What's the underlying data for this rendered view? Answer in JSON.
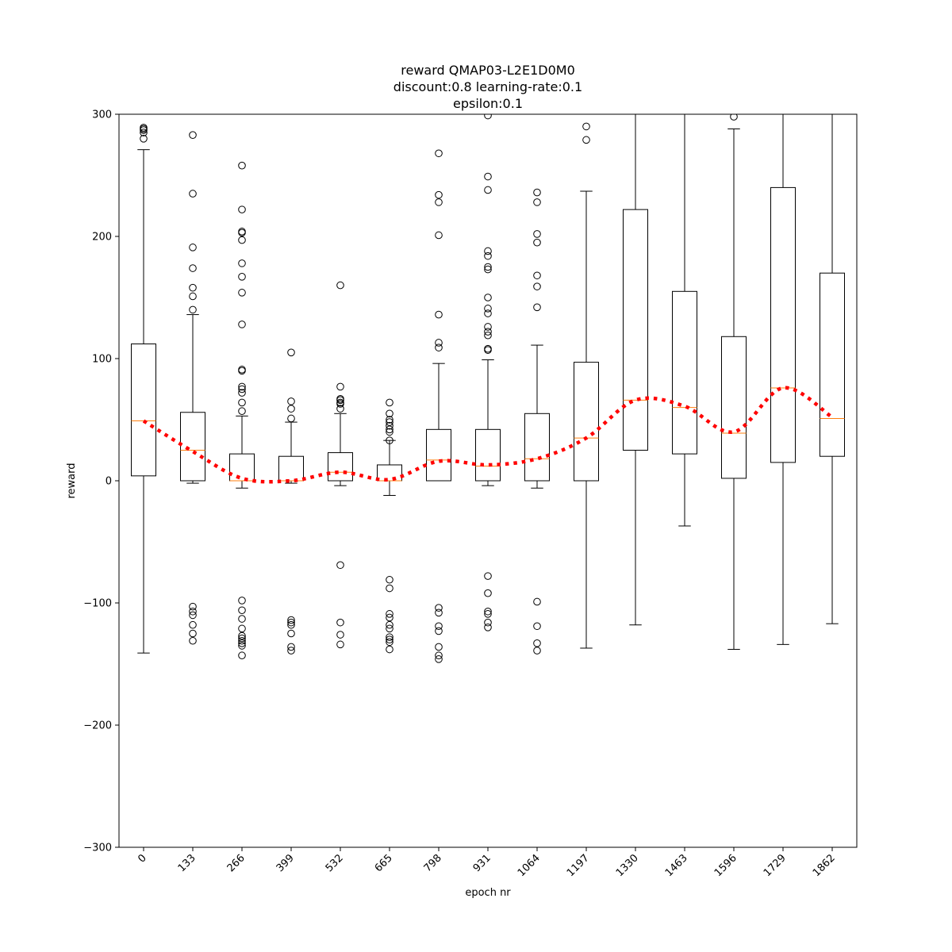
{
  "chart_data": {
    "type": "box",
    "title_lines": [
      "reward QMAP03-L2E1D0M0",
      "discount:0.8 learning-rate:0.1",
      "epsilon:0.1"
    ],
    "xlabel": "epoch nr",
    "ylabel": "reward",
    "ylim": [
      -300,
      300
    ],
    "yticks": [
      -300,
      -200,
      -100,
      0,
      100,
      200,
      300
    ],
    "categories": [
      "0",
      "133",
      "266",
      "399",
      "532",
      "665",
      "798",
      "931",
      "1064",
      "1197",
      "1330",
      "1463",
      "1596",
      "1729",
      "1862"
    ],
    "boxes": [
      {
        "q1": 4,
        "median": 49,
        "q3": 112,
        "whisker_low": -141,
        "whisker_high": 271,
        "outliers": [
          280,
          285,
          287,
          288,
          289
        ]
      },
      {
        "q1": 0,
        "median": 25,
        "q3": 56,
        "whisker_low": -2,
        "whisker_high": 136,
        "outliers": [
          283,
          235,
          191,
          174,
          158,
          151,
          140,
          -103,
          -107,
          -110,
          -118,
          -125,
          -131
        ]
      },
      {
        "q1": 0,
        "median": 0,
        "q3": 22,
        "whisker_low": -6,
        "whisker_high": 53,
        "outliers": [
          258,
          222,
          204,
          203,
          197,
          178,
          167,
          154,
          128,
          91,
          90,
          77,
          75,
          72,
          64,
          57,
          -98,
          -106,
          -113,
          -121,
          -127,
          -129,
          -131,
          -133,
          -135,
          -143
        ]
      },
      {
        "q1": 0,
        "median": 0,
        "q3": 20,
        "whisker_low": -2,
        "whisker_high": 48,
        "outliers": [
          105,
          65,
          59,
          51,
          -114,
          -116,
          -118,
          -125,
          -136,
          -139
        ]
      },
      {
        "q1": 0,
        "median": 7,
        "q3": 23,
        "whisker_low": -4,
        "whisker_high": 55,
        "outliers": [
          160,
          77,
          67,
          66,
          64,
          63,
          59,
          -69,
          -116,
          -126,
          -134
        ]
      },
      {
        "q1": 0,
        "median": 0,
        "q3": 13,
        "whisker_low": -12,
        "whisker_high": 33,
        "outliers": [
          64,
          55,
          50,
          48,
          45,
          42,
          40,
          33,
          -81,
          -88,
          -109,
          -112,
          -118,
          -121,
          -128,
          -130,
          -132,
          -138
        ]
      },
      {
        "q1": 0,
        "median": 17,
        "q3": 42,
        "whisker_low": 0,
        "whisker_high": 96,
        "outliers": [
          268,
          234,
          228,
          201,
          136,
          113,
          109,
          -104,
          -108,
          -119,
          -123,
          -136,
          -143,
          -146
        ]
      },
      {
        "q1": 0,
        "median": 12,
        "q3": 42,
        "whisker_low": -4,
        "whisker_high": 99,
        "outliers": [
          299,
          249,
          238,
          188,
          184,
          175,
          173,
          150,
          141,
          137,
          126,
          122,
          119,
          108,
          107,
          -78,
          -92,
          -107,
          -109,
          -116,
          -120
        ]
      },
      {
        "q1": 0,
        "median": 18,
        "q3": 55,
        "whisker_low": -6,
        "whisker_high": 111,
        "outliers": [
          236,
          228,
          202,
          195,
          168,
          159,
          142,
          -99,
          -119,
          -133,
          -139
        ]
      },
      {
        "q1": 0,
        "median": 35,
        "q3": 97,
        "whisker_low": -137,
        "whisker_high": 237,
        "outliers": [
          290,
          279
        ]
      },
      {
        "q1": 25,
        "median": 66,
        "q3": 222,
        "whisker_low": -118,
        "whisker_high": 300,
        "outliers": []
      },
      {
        "q1": 22,
        "median": 60,
        "q3": 155,
        "whisker_low": -37,
        "whisker_high": 300,
        "outliers": []
      },
      {
        "q1": 2,
        "median": 39,
        "q3": 118,
        "whisker_low": -138,
        "whisker_high": 288,
        "outliers": [
          298
        ]
      },
      {
        "q1": 15,
        "median": 76,
        "q3": 240,
        "whisker_low": -134,
        "whisker_high": 300,
        "outliers": []
      },
      {
        "q1": 20,
        "median": 51,
        "q3": 170,
        "whisker_low": -117,
        "whisker_high": 300,
        "outliers": []
      }
    ],
    "trend_line": {
      "style": "dotted",
      "color": "#ff0000",
      "values": [
        49,
        24,
        2,
        0,
        7,
        1,
        16,
        13,
        18,
        35,
        66,
        61,
        40,
        76,
        52
      ]
    },
    "colors": {
      "box": "#000000",
      "median": "#ff7f0e",
      "trend": "#ff0000"
    }
  }
}
